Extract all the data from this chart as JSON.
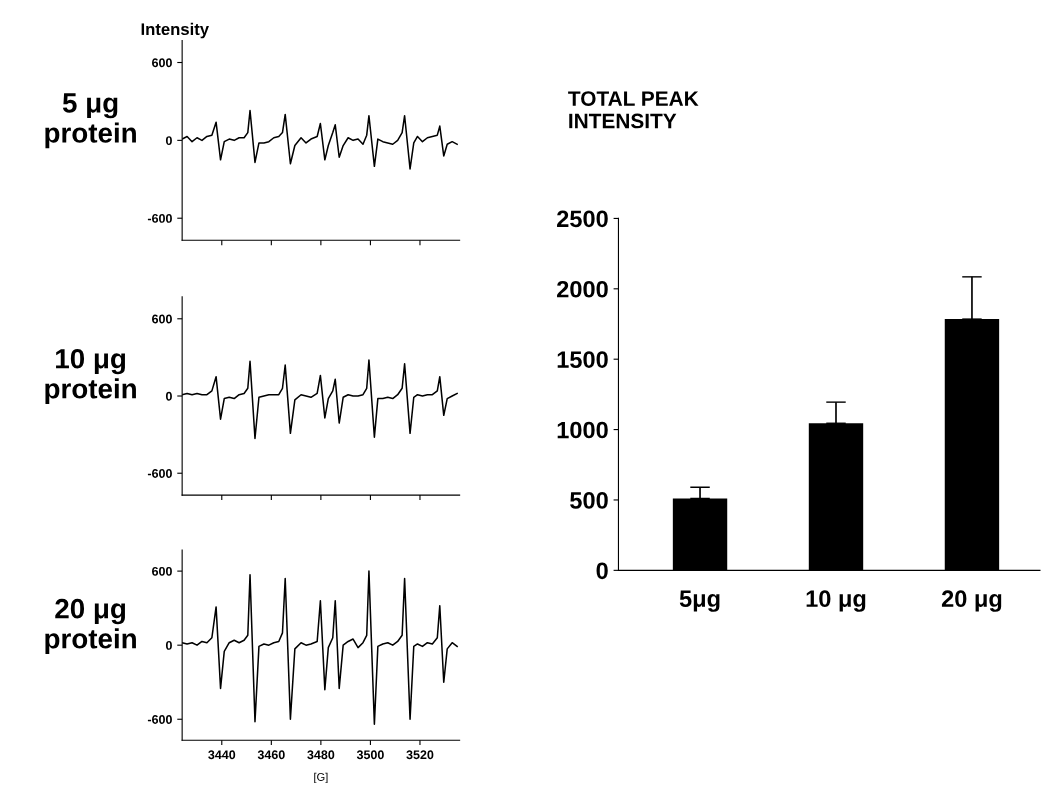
{
  "chart_data": [
    {
      "type": "line",
      "title": "Intensity",
      "ylabel": "5 μg\nprotein",
      "tick_labels": "y",
      "grid": false,
      "legend": false,
      "marker": "none",
      "line_style": "solid",
      "x": [
        3424,
        3426,
        3428,
        3430,
        3432,
        3434,
        3436,
        3437.7,
        3439.5,
        3441,
        3443,
        3445,
        3447,
        3449,
        3450.5,
        3451.4,
        3453.4,
        3455,
        3457,
        3459,
        3461,
        3463,
        3464.5,
        3465.6,
        3467.7,
        3469.5,
        3472,
        3474,
        3476,
        3478.5,
        3479.8,
        3481.6,
        3483,
        3484.8,
        3485.8,
        3487.4,
        3489,
        3491,
        3493,
        3495,
        3497,
        3498.5,
        3499.4,
        3501.6,
        3503,
        3505,
        3507,
        3509,
        3511,
        3512.8,
        3513.8,
        3516.0,
        3517.5,
        3519,
        3521,
        3523,
        3525,
        3527,
        3528.0,
        3529.6,
        3531,
        3533,
        3535
      ],
      "series": [
        {
          "color": "#000000",
          "values": [
            10,
            30,
            -10,
            20,
            0,
            30,
            40,
            140,
            -150,
            -10,
            10,
            0,
            20,
            20,
            60,
            230,
            -170,
            -20,
            -20,
            -10,
            20,
            30,
            60,
            200,
            -180,
            -40,
            20,
            -20,
            10,
            30,
            130,
            -150,
            -40,
            60,
            120,
            -130,
            -40,
            20,
            0,
            10,
            -30,
            40,
            190,
            -200,
            10,
            -10,
            -20,
            -30,
            0,
            60,
            190,
            -220,
            -20,
            30,
            -10,
            20,
            30,
            40,
            110,
            -120,
            -30,
            -10,
            -30
          ]
        }
      ],
      "xlim": [
        3424,
        3536
      ],
      "xticks": [
        3440,
        3460,
        3480,
        3500,
        3520
      ],
      "ylim": [
        -770,
        770
      ],
      "yticks": [
        -600,
        0,
        600
      ]
    },
    {
      "type": "line",
      "ylabel": "10 μg\nprotein",
      "tick_labels": "y",
      "grid": false,
      "legend": false,
      "marker": "none",
      "line_style": "solid",
      "x": [
        3424,
        3426,
        3428,
        3430,
        3432,
        3434,
        3436,
        3437.7,
        3439.5,
        3441,
        3443,
        3445,
        3447,
        3449,
        3450.5,
        3451.4,
        3453.4,
        3455,
        3457,
        3459,
        3461,
        3463,
        3464.5,
        3465.6,
        3467.7,
        3469.5,
        3472,
        3474,
        3476,
        3478.5,
        3479.8,
        3481.6,
        3483,
        3484.8,
        3485.8,
        3487.4,
        3489,
        3491,
        3493,
        3495,
        3497,
        3498.5,
        3499.4,
        3501.6,
        3503,
        3505,
        3507,
        3509,
        3511,
        3512.8,
        3513.8,
        3516.0,
        3517.5,
        3519,
        3521,
        3523,
        3525,
        3527,
        3528.0,
        3529.6,
        3531,
        3533,
        3535
      ],
      "series": [
        {
          "color": "#000000",
          "values": [
            10,
            20,
            10,
            20,
            10,
            10,
            40,
            150,
            -180,
            -20,
            -10,
            -20,
            10,
            20,
            60,
            270,
            -330,
            -10,
            0,
            10,
            10,
            10,
            60,
            240,
            -290,
            -30,
            10,
            0,
            -10,
            20,
            160,
            -170,
            -20,
            40,
            130,
            -210,
            -10,
            10,
            0,
            0,
            10,
            60,
            280,
            -320,
            -20,
            -20,
            -10,
            -20,
            10,
            60,
            250,
            -290,
            -10,
            10,
            0,
            10,
            10,
            40,
            150,
            -150,
            -20,
            0,
            20
          ]
        }
      ],
      "xlim": [
        3424,
        3536
      ],
      "xticks": [
        3440,
        3460,
        3480,
        3500,
        3520
      ],
      "ylim": [
        -770,
        770
      ],
      "yticks": [
        -600,
        0,
        600
      ]
    },
    {
      "type": "line",
      "ylabel": "20 μg\nprotein",
      "xlabel": "[G]",
      "grid": false,
      "legend": false,
      "marker": "none",
      "line_style": "solid",
      "x": [
        3424,
        3426,
        3428,
        3430,
        3432,
        3434,
        3436,
        3437.7,
        3439.5,
        3441,
        3443,
        3445,
        3447,
        3449,
        3450.5,
        3451.4,
        3453.4,
        3455,
        3457,
        3459,
        3461,
        3463,
        3464.5,
        3465.6,
        3467.7,
        3469.5,
        3472,
        3474,
        3476,
        3478.5,
        3479.8,
        3481.6,
        3483,
        3484.8,
        3485.8,
        3487.4,
        3489,
        3491,
        3493,
        3495,
        3497,
        3498.5,
        3499.4,
        3501.6,
        3503,
        3505,
        3507,
        3509,
        3511,
        3512.8,
        3513.8,
        3516.0,
        3517.5,
        3519,
        3521,
        3523,
        3525,
        3527,
        3528.0,
        3529.6,
        3531,
        3533,
        3535
      ],
      "series": [
        {
          "color": "#000000",
          "values": [
            20,
            10,
            20,
            0,
            30,
            20,
            60,
            310,
            -350,
            -50,
            20,
            40,
            20,
            40,
            80,
            570,
            -620,
            -10,
            10,
            0,
            20,
            30,
            100,
            540,
            -600,
            -30,
            20,
            0,
            10,
            30,
            360,
            -360,
            -20,
            60,
            360,
            -350,
            0,
            30,
            50,
            -20,
            20,
            80,
            600,
            -640,
            -10,
            10,
            20,
            0,
            30,
            80,
            540,
            -600,
            -10,
            10,
            -10,
            20,
            10,
            60,
            320,
            -300,
            -30,
            20,
            -10
          ]
        }
      ],
      "xlim": [
        3424,
        3536
      ],
      "xticks": [
        3440,
        3460,
        3480,
        3500,
        3520
      ],
      "ylim": [
        -770,
        770
      ],
      "yticks": [
        -600,
        0,
        600
      ]
    },
    {
      "type": "bar",
      "title": "TOTAL PEAK\nINTENSITY",
      "grid": false,
      "legend": false,
      "categories": [
        "5μg",
        "10 μg",
        "20 μg"
      ],
      "values": [
        510,
        1045,
        1785
      ],
      "color": "#000000",
      "errors": [
        [
          510,
          590
        ],
        [
          1045,
          1195
        ],
        [
          1785,
          2085
        ]
      ],
      "ylim": [
        0,
        2500
      ],
      "yticks": [
        0,
        500,
        1000,
        1500,
        2000,
        2500
      ]
    }
  ]
}
